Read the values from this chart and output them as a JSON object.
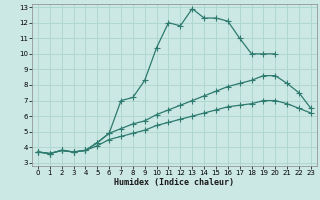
{
  "xlabel": "Humidex (Indice chaleur)",
  "bg_color": "#cce8e4",
  "line_color": "#2d7a6e",
  "grid_color": "#b0d8d0",
  "xlim": [
    -0.5,
    23.5
  ],
  "ylim": [
    2.8,
    13.2
  ],
  "xticks": [
    0,
    1,
    2,
    3,
    4,
    5,
    6,
    7,
    8,
    9,
    10,
    11,
    12,
    13,
    14,
    15,
    16,
    17,
    18,
    19,
    20,
    21,
    22,
    23
  ],
  "yticks": [
    3,
    4,
    5,
    6,
    7,
    8,
    9,
    10,
    11,
    12,
    13
  ],
  "curve_top_x": [
    0,
    1,
    2,
    3,
    4,
    5,
    6,
    7,
    8,
    9,
    10,
    11,
    12,
    13,
    14,
    15,
    16,
    17,
    18,
    19,
    20
  ],
  "curve_top_y": [
    3.7,
    3.6,
    3.8,
    3.7,
    3.8,
    4.3,
    4.9,
    7.0,
    7.2,
    8.3,
    10.4,
    12.0,
    11.8,
    12.9,
    12.3,
    12.3,
    12.1,
    11.0,
    10.0,
    10.0,
    10.0
  ],
  "curve_mid_x": [
    0,
    1,
    2,
    3,
    4,
    5,
    6,
    7,
    8,
    9,
    10,
    11,
    12,
    13,
    14,
    15,
    16,
    17,
    18,
    19,
    20,
    21,
    22,
    23
  ],
  "curve_mid_y": [
    3.7,
    3.6,
    3.8,
    3.7,
    3.8,
    4.3,
    4.9,
    5.2,
    5.5,
    5.7,
    6.1,
    6.4,
    6.7,
    7.0,
    7.3,
    7.6,
    7.9,
    8.1,
    8.3,
    8.6,
    8.6,
    8.1,
    7.5,
    6.5
  ],
  "curve_bot_x": [
    0,
    1,
    2,
    3,
    4,
    5,
    6,
    7,
    8,
    9,
    10,
    11,
    12,
    13,
    14,
    15,
    16,
    17,
    18,
    19,
    20,
    21,
    22,
    23
  ],
  "curve_bot_y": [
    3.7,
    3.6,
    3.8,
    3.7,
    3.8,
    4.1,
    4.5,
    4.7,
    4.9,
    5.1,
    5.4,
    5.6,
    5.8,
    6.0,
    6.2,
    6.4,
    6.6,
    6.7,
    6.8,
    7.0,
    7.0,
    6.8,
    6.5,
    6.2
  ]
}
